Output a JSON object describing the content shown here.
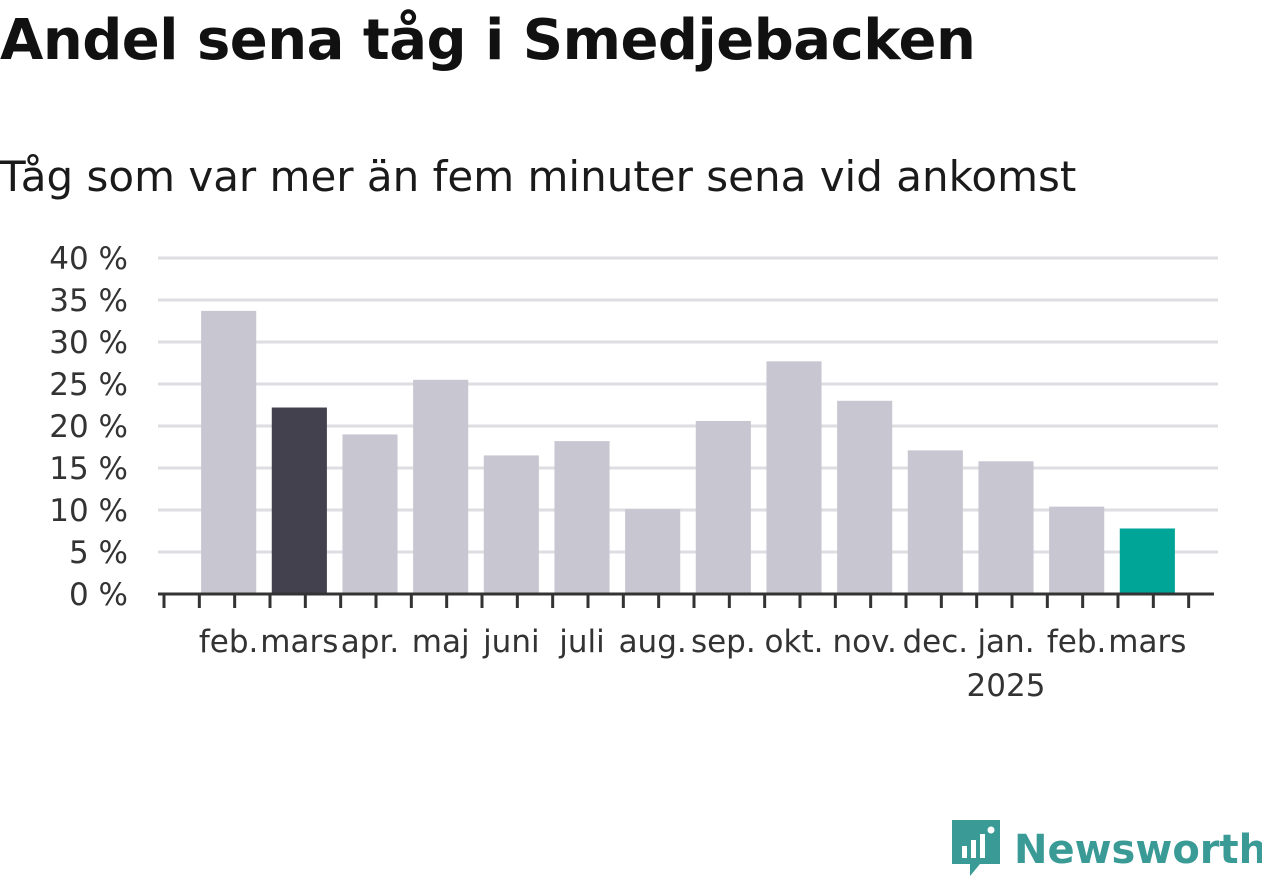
{
  "title": "Andel sena tåg i Smedjebacken",
  "subtitle": "Tåg som var mer än fem minuter sena vid ankomst",
  "brand": {
    "name": "Newsworthy",
    "icon": "newsworthy-logo-icon",
    "color": "#3a9a96"
  },
  "chart_data": {
    "type": "bar",
    "categories": [
      "feb.",
      "mars",
      "apr.",
      "maj",
      "juni",
      "juli",
      "aug.",
      "sep.",
      "okt.",
      "nov.",
      "dec.",
      "jan.",
      "feb.",
      "mars"
    ],
    "year_labels": [
      {
        "index": 11,
        "label": "2025"
      }
    ],
    "values": [
      33.7,
      22.2,
      19.0,
      25.5,
      16.5,
      18.2,
      10.1,
      20.6,
      27.7,
      23.0,
      17.1,
      15.8,
      10.4,
      7.8
    ],
    "bar_colors": [
      "#c8c7d1",
      "#43414e",
      "#c8c7d1",
      "#c8c7d1",
      "#c8c7d1",
      "#c8c7d1",
      "#c8c7d1",
      "#c8c7d1",
      "#c8c7d1",
      "#c8c7d1",
      "#c8c7d1",
      "#c8c7d1",
      "#c8c7d1",
      "#00a598"
    ],
    "yticks": [
      0,
      5,
      10,
      15,
      20,
      25,
      30,
      35,
      40
    ],
    "ytick_labels": [
      "0 %",
      "5 %",
      "10 %",
      "15 %",
      "20 %",
      "25 %",
      "30 %",
      "35 %",
      "40 %"
    ],
    "ylim": [
      0,
      40
    ],
    "grid": true,
    "colors": {
      "default": "#c8c7d1",
      "highlight": "#43414e",
      "latest": "#00a598",
      "grid": "#dddde2",
      "axis": "#333333"
    }
  }
}
